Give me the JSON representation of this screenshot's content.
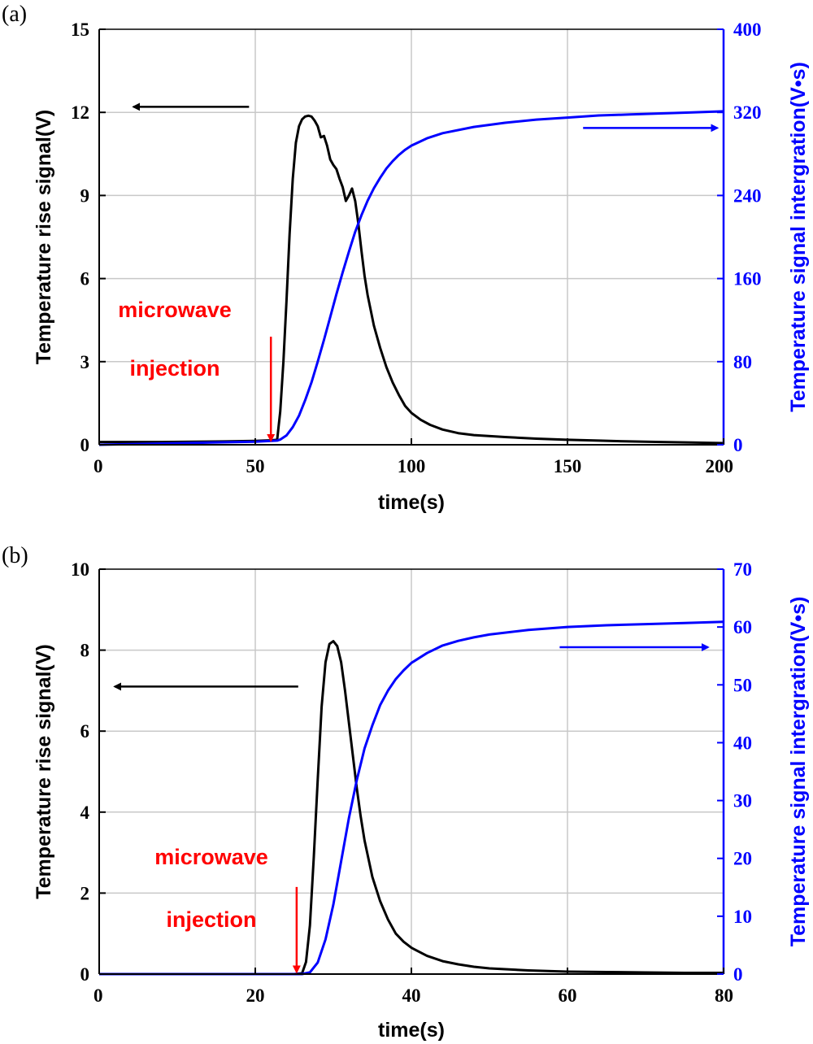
{
  "colors": {
    "left_series": "#000000",
    "right_series": "#0000ff",
    "annotation": "#ff0000",
    "grid": "#c8c8c8"
  },
  "chart_data": [
    {
      "panel_label": "(a)",
      "type": "line",
      "xlabel": "time(s)",
      "ylabel_left": "Temperature rise signal(V)",
      "ylabel_right": "Temperature signal intergration(V•s)",
      "xlim": [
        0,
        200
      ],
      "ylim_left": [
        0,
        15
      ],
      "ylim_right": [
        0,
        400
      ],
      "xticks": [
        0,
        50,
        100,
        150,
        200
      ],
      "yticks_left": [
        0,
        3,
        6,
        9,
        12,
        15
      ],
      "yticks_right": [
        0,
        80,
        160,
        240,
        320,
        400
      ],
      "grid": true,
      "annotation": {
        "line1": "microwave",
        "line2": "injection",
        "x": 55,
        "y_top": 3.9,
        "y_bottom": 0.15
      },
      "left_arrow": {
        "x_from": 48,
        "x_to": 11,
        "y": 12.2
      },
      "right_arrow": {
        "x_from": 155,
        "x_to": 198,
        "y": 305
      },
      "series": [
        {
          "name": "Temperature rise signal",
          "axis": "left",
          "x": [
            0,
            20,
            40,
            50,
            55,
            57,
            58,
            59,
            60,
            61,
            62,
            63,
            64,
            65,
            66,
            67,
            68,
            69,
            70,
            71,
            72,
            73,
            74,
            75,
            76,
            77,
            78,
            79,
            80,
            81,
            82,
            83,
            84,
            85,
            86,
            88,
            90,
            92,
            94,
            96,
            98,
            100,
            103,
            106,
            110,
            115,
            120,
            130,
            140,
            150,
            160,
            170,
            180,
            190,
            200
          ],
          "values": [
            0.1,
            0.1,
            0.12,
            0.14,
            0.16,
            0.18,
            1.2,
            3.0,
            5.2,
            7.6,
            9.6,
            10.9,
            11.5,
            11.75,
            11.85,
            11.88,
            11.85,
            11.7,
            11.5,
            11.1,
            11.15,
            10.8,
            10.3,
            10.1,
            9.95,
            9.6,
            9.3,
            8.8,
            9.0,
            9.25,
            8.8,
            8.0,
            7.0,
            6.1,
            5.4,
            4.3,
            3.5,
            2.8,
            2.25,
            1.8,
            1.4,
            1.15,
            0.9,
            0.72,
            0.55,
            0.42,
            0.35,
            0.28,
            0.22,
            0.18,
            0.15,
            0.12,
            0.1,
            0.08,
            0.06
          ]
        },
        {
          "name": "Temperature signal intergration",
          "axis": "right",
          "x": [
            0,
            50,
            57,
            58,
            60,
            62,
            64,
            66,
            68,
            70,
            72,
            74,
            76,
            78,
            80,
            82,
            84,
            86,
            88,
            90,
            92,
            94,
            96,
            98,
            100,
            105,
            110,
            120,
            130,
            140,
            150,
            160,
            170,
            180,
            190,
            200
          ],
          "values": [
            0,
            3,
            4,
            5,
            9,
            17,
            28,
            43,
            60,
            80,
            101,
            123,
            145,
            166,
            186,
            205,
            221,
            235,
            247,
            257,
            266,
            273,
            279,
            284,
            288,
            295,
            300,
            306,
            310,
            313,
            315,
            317,
            318,
            319,
            320,
            321
          ]
        }
      ]
    },
    {
      "panel_label": "(b)",
      "type": "line",
      "xlabel": "time(s)",
      "ylabel_left": "Temperature rise signal(V)",
      "ylabel_right": "Temperature signal intergration(V•s)",
      "xlim": [
        0,
        80
      ],
      "ylim_left": [
        0,
        10
      ],
      "ylim_right": [
        0,
        70
      ],
      "xticks": [
        0,
        20,
        40,
        60,
        80
      ],
      "yticks_left": [
        0,
        2,
        4,
        6,
        8,
        10
      ],
      "yticks_right": [
        0,
        10,
        20,
        30,
        40,
        50,
        60,
        70
      ],
      "grid": true,
      "annotation": {
        "line1": "microwave",
        "line2": "injection",
        "x": 25.3,
        "y_top": 2.15,
        "y_bottom": 0.05
      },
      "left_arrow": {
        "x_from": 25.5,
        "x_to": 2,
        "y": 7.1
      },
      "right_arrow": {
        "x_from": 59,
        "x_to": 78,
        "y": 56.5
      },
      "series": [
        {
          "name": "Temperature rise signal",
          "axis": "left",
          "x": [
            0,
            20,
            25,
            26,
            26.5,
            27,
            27.5,
            28,
            28.5,
            29,
            29.5,
            30,
            30.5,
            31,
            31.5,
            32,
            32.5,
            33,
            33.5,
            34,
            35,
            36,
            37,
            38,
            39,
            40,
            42,
            44,
            46,
            48,
            50,
            55,
            60,
            65,
            70,
            75,
            80
          ],
          "values": [
            0,
            0,
            0,
            0.02,
            0.3,
            1.2,
            2.9,
            4.8,
            6.6,
            7.7,
            8.15,
            8.22,
            8.1,
            7.7,
            7.0,
            6.2,
            5.4,
            4.6,
            3.9,
            3.3,
            2.4,
            1.8,
            1.35,
            1.0,
            0.8,
            0.65,
            0.45,
            0.32,
            0.24,
            0.18,
            0.14,
            0.09,
            0.06,
            0.05,
            0.04,
            0.03,
            0.03
          ]
        },
        {
          "name": "Temperature signal intergration",
          "axis": "right",
          "x": [
            0,
            26,
            27,
            28,
            29,
            30,
            31,
            32,
            33,
            34,
            35,
            36,
            37,
            38,
            39,
            40,
            42,
            44,
            46,
            48,
            50,
            55,
            60,
            65,
            70,
            75,
            80
          ],
          "values": [
            0,
            0,
            0.3,
            2.0,
            6.0,
            12.0,
            19.5,
            27.0,
            33.5,
            39.0,
            43.0,
            46.5,
            49.0,
            51.0,
            52.5,
            53.8,
            55.5,
            56.8,
            57.6,
            58.2,
            58.7,
            59.5,
            60.0,
            60.3,
            60.5,
            60.7,
            60.9
          ]
        }
      ]
    }
  ]
}
